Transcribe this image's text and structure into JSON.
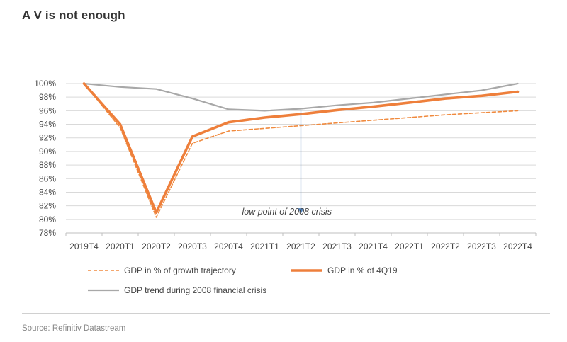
{
  "page": {
    "title": "A V is not enough",
    "source": "Source: Refinitiv Datastream"
  },
  "chart_data": {
    "type": "line",
    "title": "A V is not enough",
    "xlabel": "",
    "ylabel": "",
    "categories": [
      "2019T4",
      "2020T1",
      "2020T2",
      "2020T3",
      "2020T4",
      "2021T1",
      "2021T2",
      "2021T3",
      "2021T4",
      "2022T1",
      "2022T2",
      "2022T3",
      "2022T4"
    ],
    "ylim": [
      78,
      100
    ],
    "yticks": [
      78,
      80,
      82,
      84,
      86,
      88,
      90,
      92,
      94,
      96,
      98,
      100
    ],
    "ytick_labels": [
      "78%",
      "80%",
      "82%",
      "84%",
      "86%",
      "88%",
      "90%",
      "92%",
      "94%",
      "96%",
      "98%",
      "100%"
    ],
    "grid": true,
    "legend_position": "bottom",
    "series": [
      {
        "name": "GDP in % of growth trajectory",
        "style": "dashed",
        "color": "#f08a3e",
        "values": [
          100,
          93.5,
          80.3,
          91.2,
          93.0,
          93.4,
          93.8,
          94.2,
          94.6,
          95.0,
          95.4,
          95.7,
          96.0
        ]
      },
      {
        "name": "GDP in % of 4Q19",
        "style": "solid-thick",
        "color": "#ee7f3b",
        "values": [
          100,
          94.0,
          81.0,
          92.2,
          94.3,
          95.0,
          95.5,
          96.1,
          96.6,
          97.2,
          97.8,
          98.2,
          98.8
        ]
      },
      {
        "name": "GDP trend during 2008 financial crisis",
        "style": "solid",
        "color": "#a8a8a8",
        "values": [
          100,
          99.5,
          99.2,
          97.8,
          96.2,
          96.0,
          96.3,
          96.8,
          97.2,
          97.8,
          98.4,
          99.0,
          100.0
        ]
      }
    ],
    "annotations": [
      {
        "text": "low point of 2008 crisis",
        "arrow_from": 96.0,
        "arrow_to": 80.8,
        "category": "2021T2",
        "color": "#4f81bd"
      }
    ]
  }
}
